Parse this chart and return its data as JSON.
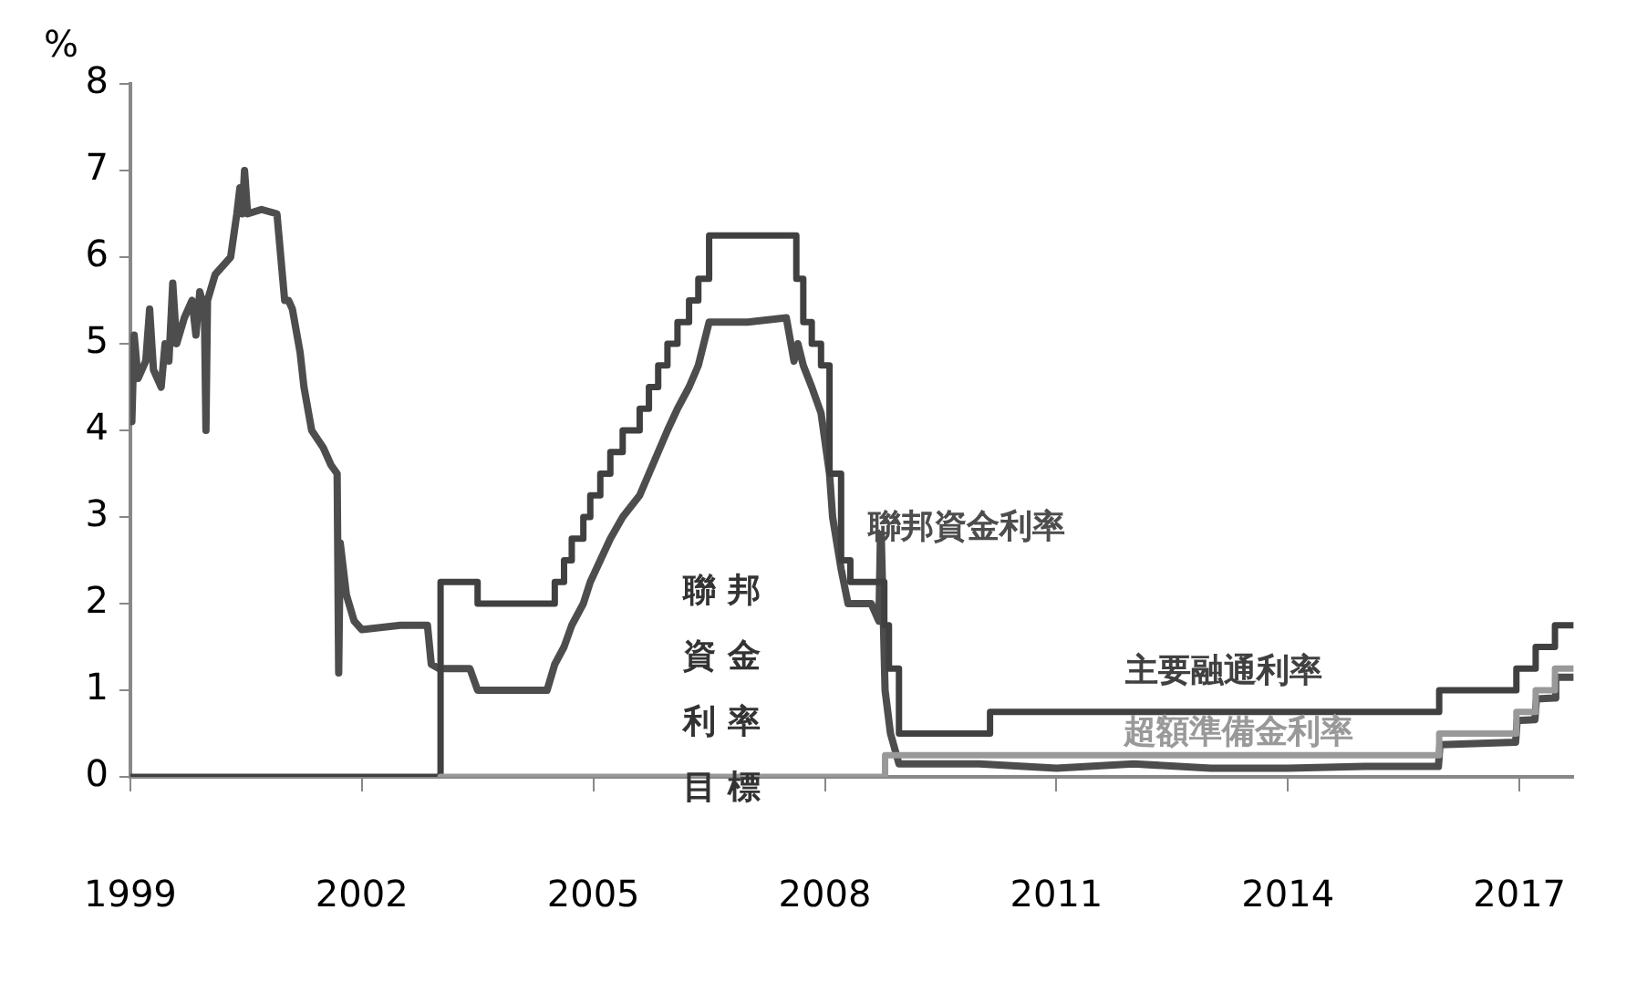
{
  "chart_data": {
    "type": "line",
    "ylabel": "%",
    "xlim": [
      1999,
      2017.7
    ],
    "xticks": [
      1999,
      2002,
      2005,
      2008,
      2011,
      2014,
      2017
    ],
    "ylim": [
      0,
      8
    ],
    "yticks": [
      0,
      1,
      2,
      3,
      4,
      5,
      6,
      7,
      8
    ],
    "grid": false,
    "legend": false,
    "marker": "none",
    "line_style": "solid",
    "annotations": [
      "聯邦資金利率目標"
    ],
    "series": [
      {
        "name": "聯邦資金利率",
        "type": "line",
        "color": "#4d4d4d",
        "x": [
          1999.0,
          1999.02,
          1999.05,
          1999.1,
          1999.2,
          1999.25,
          1999.3,
          1999.4,
          1999.45,
          1999.5,
          1999.55,
          1999.6,
          1999.7,
          1999.8,
          1999.85,
          1999.9,
          1999.96,
          1999.98,
          2000.0,
          2000.1,
          2000.2,
          2000.3,
          2000.38,
          2000.42,
          2000.45,
          2000.48,
          2000.52,
          2000.7,
          2000.9,
          2000.95,
          2001.0,
          2001.05,
          2001.1,
          2001.2,
          2001.25,
          2001.35,
          2001.5,
          2001.6,
          2001.68,
          2001.7,
          2001.72,
          2001.8,
          2001.9,
          2002.0,
          2002.5,
          2002.85,
          2002.9,
          2003.0,
          2003.4,
          2003.5,
          2004.0,
          2004.4,
          2004.5,
          2004.62,
          2004.72,
          2004.87,
          2004.96,
          2005.09,
          2005.22,
          2005.38,
          2005.6,
          2005.72,
          2005.84,
          2005.96,
          2006.09,
          2006.24,
          2006.36,
          2006.5,
          2007.0,
          2007.5,
          2007.6,
          2007.65,
          2007.72,
          2007.83,
          2007.95,
          2008.06,
          2008.1,
          2008.21,
          2008.3,
          2008.6,
          2008.7,
          2008.72,
          2008.73,
          2008.78,
          2008.85,
          2008.96,
          2010.0,
          2011.0,
          2012.0,
          2013.0,
          2014.0,
          2015.0,
          2015.95,
          2015.97,
          2016.95,
          2016.97,
          2017.2,
          2017.22,
          2017.45,
          2017.47,
          2017.7
        ],
        "values": [
          4.8,
          4.1,
          5.1,
          4.6,
          4.8,
          5.4,
          4.7,
          4.5,
          5.0,
          4.8,
          5.7,
          5.0,
          5.3,
          5.5,
          5.1,
          5.6,
          5.4,
          4.0,
          5.5,
          5.8,
          5.9,
          6.0,
          6.5,
          6.8,
          6.5,
          7.0,
          6.5,
          6.55,
          6.5,
          6.0,
          5.5,
          5.5,
          5.4,
          4.9,
          4.5,
          4.0,
          3.8,
          3.6,
          3.5,
          1.2,
          2.7,
          2.1,
          1.8,
          1.7,
          1.75,
          1.75,
          1.3,
          1.25,
          1.25,
          1.0,
          1.0,
          1.0,
          1.3,
          1.5,
          1.75,
          2.0,
          2.25,
          2.5,
          2.75,
          3.0,
          3.25,
          3.5,
          3.75,
          4.0,
          4.25,
          4.5,
          4.75,
          5.25,
          5.25,
          5.3,
          4.8,
          5.0,
          4.75,
          4.5,
          4.2,
          3.5,
          3.0,
          2.4,
          2.0,
          2.0,
          1.8,
          2.8,
          2.8,
          1.0,
          0.5,
          0.15,
          0.15,
          0.1,
          0.15,
          0.1,
          0.1,
          0.12,
          0.12,
          0.37,
          0.4,
          0.65,
          0.66,
          0.9,
          0.91,
          1.15,
          1.15
        ]
      },
      {
        "name": "主要融通利率",
        "type": "step",
        "color": "#404040",
        "x": [
          1999.0,
          2003.02,
          2003.5,
          2004.5,
          2004.62,
          2004.72,
          2004.87,
          2004.96,
          2005.09,
          2005.22,
          2005.38,
          2005.6,
          2005.72,
          2005.84,
          2005.96,
          2006.09,
          2006.24,
          2006.36,
          2006.5,
          2007.63,
          2007.72,
          2007.83,
          2007.95,
          2008.06,
          2008.21,
          2008.33,
          2008.77,
          2008.83,
          2008.96,
          2010.14,
          2015.96,
          2016.96,
          2017.21,
          2017.46,
          2017.7
        ],
        "values": [
          0,
          2.25,
          2.0,
          2.25,
          2.5,
          2.75,
          3.0,
          3.25,
          3.5,
          3.75,
          4.0,
          4.25,
          4.5,
          4.75,
          5.0,
          5.25,
          5.5,
          5.75,
          6.25,
          5.75,
          5.25,
          5.0,
          4.75,
          3.5,
          2.5,
          2.25,
          1.75,
          1.25,
          0.5,
          0.75,
          1.0,
          1.25,
          1.5,
          1.75,
          1.75
        ]
      },
      {
        "name": "超額準備金利率",
        "type": "step",
        "color": "#999999",
        "x": [
          2003.02,
          2008.78,
          2015.96,
          2016.96,
          2017.21,
          2017.46,
          2017.7
        ],
        "values": [
          0,
          0.25,
          0.5,
          0.75,
          1.0,
          1.25,
          1.25
        ]
      }
    ]
  }
}
